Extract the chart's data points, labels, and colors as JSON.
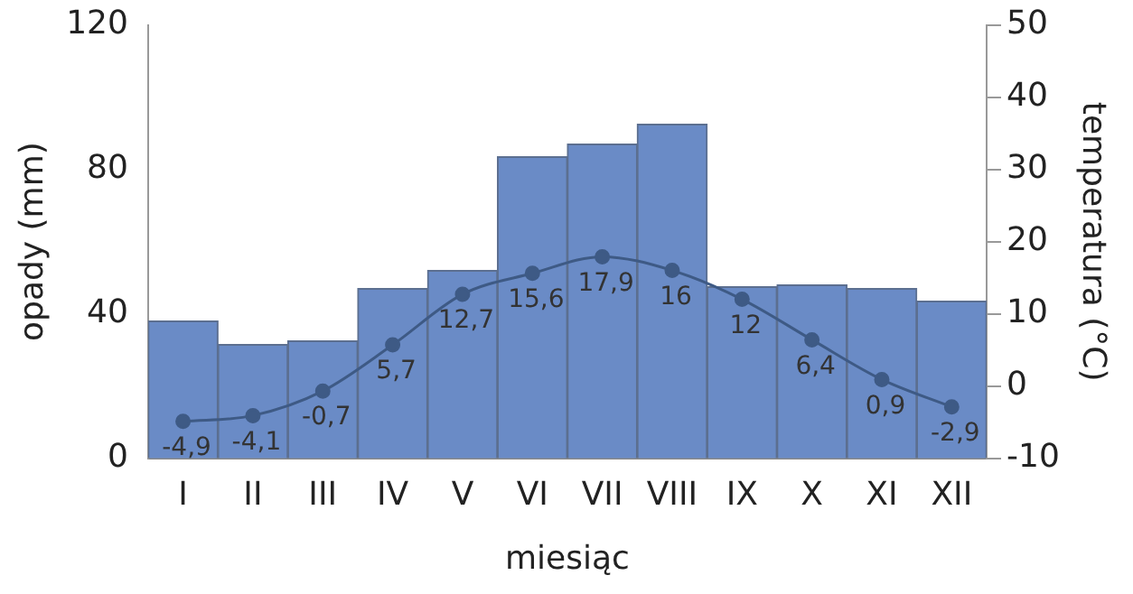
{
  "chart_data": {
    "type": "bar",
    "xlabel": "miesiąc",
    "ylabel": "opady (mm)",
    "y2label": "temperatura (°C)",
    "categories": [
      "I",
      "II",
      "III",
      "IV",
      "V",
      "VI",
      "VII",
      "VIII",
      "IX",
      "X",
      "XI",
      "XII"
    ],
    "series": [
      {
        "color": "#6a8bc6",
        "values": [
          38,
          31.5,
          32.5,
          47,
          52,
          83.5,
          87,
          92.5,
          47.5,
          48,
          47,
          43.5
        ]
      },
      {
        "type": "line",
        "axis": "y2",
        "color": "#3e5a85",
        "marker": "circle",
        "values": [
          -4.9,
          -4.1,
          -0.7,
          5.7,
          12.7,
          15.6,
          17.9,
          16,
          12,
          6.4,
          0.9,
          -2.9
        ],
        "value_labels": [
          "-4,9",
          "-4,1",
          "-0,7",
          "5,7",
          "12,7",
          "15,6",
          "17,9",
          "16",
          "12",
          "6,4",
          "0,9",
          "-2,9"
        ]
      }
    ],
    "ylim": [
      0,
      120
    ],
    "yticks": [
      0,
      40,
      80,
      120
    ],
    "y2lim": [
      -10,
      50
    ],
    "y2ticks": [
      -10,
      0,
      10,
      20,
      30,
      40,
      50
    ],
    "grid": false,
    "legend": false
  }
}
